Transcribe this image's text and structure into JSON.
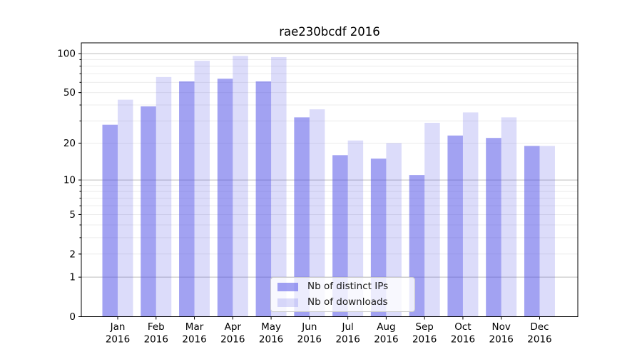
{
  "chart_data": {
    "type": "bar",
    "title": "rae230bcdf 2016",
    "categories": [
      "Jan",
      "Feb",
      "Mar",
      "Apr",
      "May",
      "Jun",
      "Jul",
      "Aug",
      "Sep",
      "Oct",
      "Nov",
      "Dec"
    ],
    "x_year": "2016",
    "series": [
      {
        "name": "Nb of distinct IPs",
        "color": "rgba(70,70,230,0.5)",
        "values": [
          28,
          39,
          61,
          64,
          61,
          32,
          16,
          15,
          11,
          23,
          22,
          19
        ]
      },
      {
        "name": "Nb of downloads",
        "color": "rgba(70,70,230,0.19)",
        "values": [
          44,
          66,
          88,
          96,
          94,
          37,
          21,
          20,
          29,
          35,
          32,
          19
        ]
      }
    ],
    "xlabel": "",
    "ylabel": "",
    "yscale": "log1p",
    "ylim": [
      0,
      121
    ],
    "yticks": [
      0,
      1,
      2,
      5,
      10,
      20,
      50,
      100
    ],
    "grid": {
      "minor": [
        2,
        3,
        4,
        5,
        6,
        7,
        8,
        9,
        20,
        30,
        40,
        50,
        60,
        70,
        80,
        90
      ],
      "major": [
        1,
        10,
        100
      ]
    },
    "legend": {
      "position": "lower center"
    },
    "style": {
      "grid_minor": "#ececec",
      "grid_major": "#bdbdbd",
      "axis": "#000000",
      "text": "#000000",
      "background": "#ffffff"
    }
  }
}
